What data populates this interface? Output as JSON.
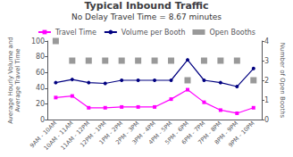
{
  "chart_data": {
    "type": "line",
    "title": "Typical Inbound Traffic",
    "subtitle": "No Delay Travel Time = 8.67 minutes",
    "categories": [
      "9AM - 10AM",
      "10AM - 11AM",
      "11AM - 12PM",
      "12PM - 1PM",
      "1PM - 2PM",
      "2PM - 3PM",
      "3PM - 4PM",
      "4PM - 5PM",
      "5PM - 6PM",
      "6PM - 7PM",
      "7PM - 8PM",
      "8PM - 9PM",
      "9PM - 10PM"
    ],
    "series": [
      {
        "name": "Travel Time",
        "type": "line",
        "color": "#FF00FF",
        "marker": "square",
        "values": [
          28,
          30,
          15,
          15,
          16,
          16,
          16,
          26,
          38,
          22,
          12,
          8,
          15
        ]
      },
      {
        "name": "Volume per Booth",
        "type": "line",
        "color": "#000080",
        "marker": "circle",
        "values": [
          47,
          51,
          47,
          46,
          50,
          50,
          50,
          50,
          76,
          50,
          47,
          42,
          65
        ]
      },
      {
        "name": "Open Booths",
        "type": "scatter",
        "color": "#808080",
        "marker": "square",
        "axis": "y2",
        "values": [
          4,
          3,
          3,
          3,
          3,
          3,
          3,
          3,
          2,
          3,
          3,
          3,
          2
        ]
      }
    ],
    "ylabel": "Average Hourly Volume and\nAverage Travel Time",
    "y2label": "Number of Open Booths",
    "ylim": [
      0,
      100
    ],
    "yticks": [
      0,
      20,
      40,
      60,
      80,
      100
    ],
    "y2lim": [
      0,
      4
    ],
    "y2ticks": [
      0,
      1,
      2,
      3,
      4
    ],
    "grid": false,
    "legend": "top"
  }
}
